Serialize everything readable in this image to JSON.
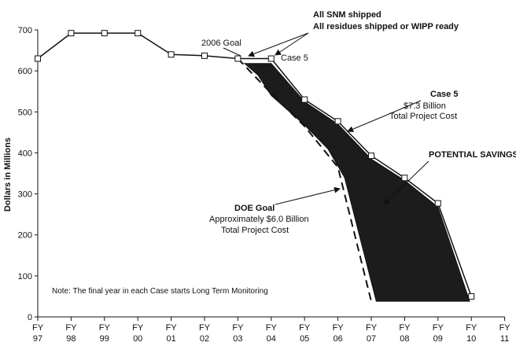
{
  "chart_data": {
    "type": "line",
    "ylabel": "Dollars in Millions",
    "ylim": [
      0,
      700
    ],
    "yticks": [
      0,
      100,
      200,
      300,
      400,
      500,
      600,
      700
    ],
    "x_ticks": [
      {
        "line1": "FY",
        "line2": "97"
      },
      {
        "line1": "FY",
        "line2": "98"
      },
      {
        "line1": "FY",
        "line2": "99"
      },
      {
        "line1": "FY",
        "line2": "00"
      },
      {
        "line1": "FY",
        "line2": "01"
      },
      {
        "line1": "FY",
        "line2": "02"
      },
      {
        "line1": "FY",
        "line2": "03"
      },
      {
        "line1": "FY",
        "line2": "04"
      },
      {
        "line1": "FY",
        "line2": "05"
      },
      {
        "line1": "FY",
        "line2": "06"
      },
      {
        "line1": "FY",
        "line2": "07"
      },
      {
        "line1": "FY",
        "line2": "08"
      },
      {
        "line1": "FY",
        "line2": "09"
      },
      {
        "line1": "FY",
        "line2": "10"
      },
      {
        "line1": "FY",
        "line2": "11"
      }
    ],
    "series": [
      {
        "name": "Case 5",
        "style": "solid line with square markers",
        "points": [
          {
            "x": 0,
            "y": 630
          },
          {
            "x": 1,
            "y": 692
          },
          {
            "x": 2,
            "y": 692
          },
          {
            "x": 3,
            "y": 692
          },
          {
            "x": 4,
            "y": 640
          },
          {
            "x": 5,
            "y": 637
          },
          {
            "x": 6,
            "y": 630
          },
          {
            "x": 7,
            "y": 630
          },
          {
            "x": 8,
            "y": 530
          },
          {
            "x": 9,
            "y": 477
          },
          {
            "x": 10,
            "y": 393
          },
          {
            "x": 11,
            "y": 339
          },
          {
            "x": 12,
            "y": 277
          },
          {
            "x": 13,
            "y": 50
          }
        ]
      },
      {
        "name": "DOE Goal",
        "style": "dashed",
        "points": [
          {
            "x": 6,
            "y": 630
          },
          {
            "x": 7,
            "y": 545
          },
          {
            "x": 8,
            "y": 465
          },
          {
            "x": 9,
            "y": 365
          },
          {
            "x": 10,
            "y": 38
          }
        ]
      }
    ],
    "savings_area": {
      "label": "POTENTIAL SAVINGS",
      "upper": [
        {
          "x": 6.2,
          "y": 618
        },
        {
          "x": 7,
          "y": 618
        },
        {
          "x": 8,
          "y": 525
        },
        {
          "x": 9,
          "y": 470
        },
        {
          "x": 10,
          "y": 385
        },
        {
          "x": 11,
          "y": 333
        },
        {
          "x": 12,
          "y": 268
        },
        {
          "x": 12.95,
          "y": 38
        }
      ],
      "lower": [
        {
          "x": 10.15,
          "y": 38
        },
        {
          "x": 9.2,
          "y": 340
        },
        {
          "x": 8.7,
          "y": 410
        },
        {
          "x": 8,
          "y": 468
        },
        {
          "x": 7,
          "y": 540
        },
        {
          "x": 6.6,
          "y": 590
        }
      ]
    },
    "annotations": {
      "top_line1": "All SNM shipped",
      "top_line2": "All residues shipped or WIPP ready",
      "goal_2006": "2006 Goal",
      "case5_short": "Case 5",
      "case5_title": "Case 5",
      "case5_cost": "$7.3 Billion",
      "case5_total": "Total Project Cost",
      "potential_savings": "POTENTIAL SAVINGS",
      "doe_title": "DOE Goal",
      "doe_cost": "Approximately $6.0 Billion",
      "doe_total": "Total Project Cost",
      "note": "Note: The final year in each Case starts Long Term Monitoring"
    }
  }
}
